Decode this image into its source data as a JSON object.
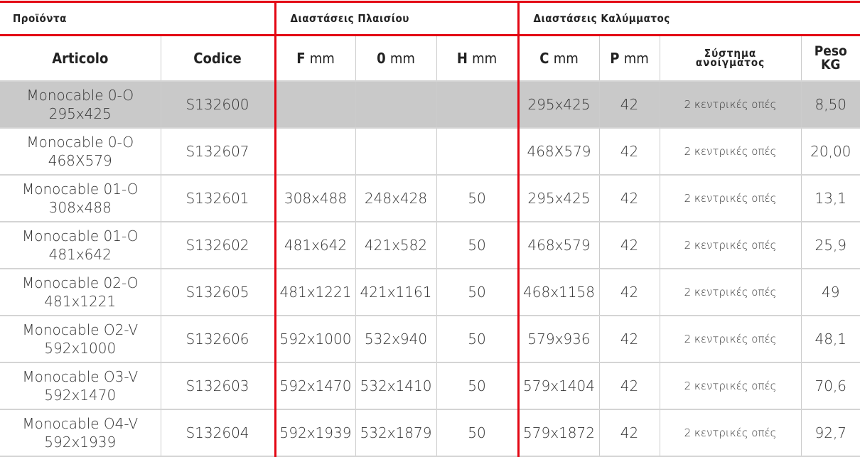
{
  "groups": {
    "products": "Προϊόντα",
    "frame": "Διαστάσεις Πλαισίου",
    "cover": "Διαστάσεις Καλύμματος"
  },
  "columns": {
    "articolo": "Articolo",
    "codice": "Codice",
    "f": "F",
    "o": "0",
    "h": "H",
    "c": "C",
    "p": "P",
    "unit": "mm",
    "system_1": "Σύστημα",
    "system_2": "ανοίγματος",
    "peso": "Peso",
    "kg": "KG"
  },
  "rows": [
    {
      "name1": "Monocable 0-O",
      "name2": "295x425",
      "code": "S132600",
      "f": "",
      "o": "",
      "h": "",
      "c": "295x425",
      "p": "42",
      "sys": "2 κεντρικές οπές",
      "kg": "8,50",
      "highlighted": true
    },
    {
      "name1": "Monocable 0-O",
      "name2": "468X579",
      "code": "S132607",
      "f": "",
      "o": "",
      "h": "",
      "c": "468X579",
      "p": "42",
      "sys": "2 κεντρικές οπές",
      "kg": "20,00"
    },
    {
      "name1": "Monocable 01-O",
      "name2": "308x488",
      "code": "S132601",
      "f": "308x488",
      "o": "248x428",
      "h": "50",
      "c": "295x425",
      "p": "42",
      "sys": "2 κεντρικές οπές",
      "kg": "13,1"
    },
    {
      "name1": "Monocable 01-O",
      "name2": "481x642",
      "code": "S132602",
      "f": "481x642",
      "o": "421x582",
      "h": "50",
      "c": "468x579",
      "p": "42",
      "sys": "2 κεντρικές οπές",
      "kg": "25,9"
    },
    {
      "name1": "Monocable 02-O",
      "name2": "481x1221",
      "code": "S132605",
      "f": "481x1221",
      "o": "421x1161",
      "h": "50",
      "c": "468x1158",
      "p": "42",
      "sys": "2 κεντρικές οπές",
      "kg": "49"
    },
    {
      "name1": "Monocable O2-V",
      "name2": "592x1000",
      "code": "S132606",
      "f": "592x1000",
      "o": "532x940",
      "h": "50",
      "c": "579x936",
      "p": "42",
      "sys": "2 κεντρικές οπές",
      "kg": "48,1"
    },
    {
      "name1": "Monocable O3-V",
      "name2": "592x1470",
      "code": "S132603",
      "f": "592x1470",
      "o": "532x1410",
      "h": "50",
      "c": "579x1404",
      "p": "42",
      "sys": "2 κεντρικές οπές",
      "kg": "70,6"
    },
    {
      "name1": "Monocable O4-V",
      "name2": "592x1939",
      "code": "S132604",
      "f": "592x1939",
      "o": "532x1879",
      "h": "50",
      "c": "579x1872",
      "p": "42",
      "sys": "2 κεντρικές οπές",
      "kg": "92,7"
    }
  ]
}
